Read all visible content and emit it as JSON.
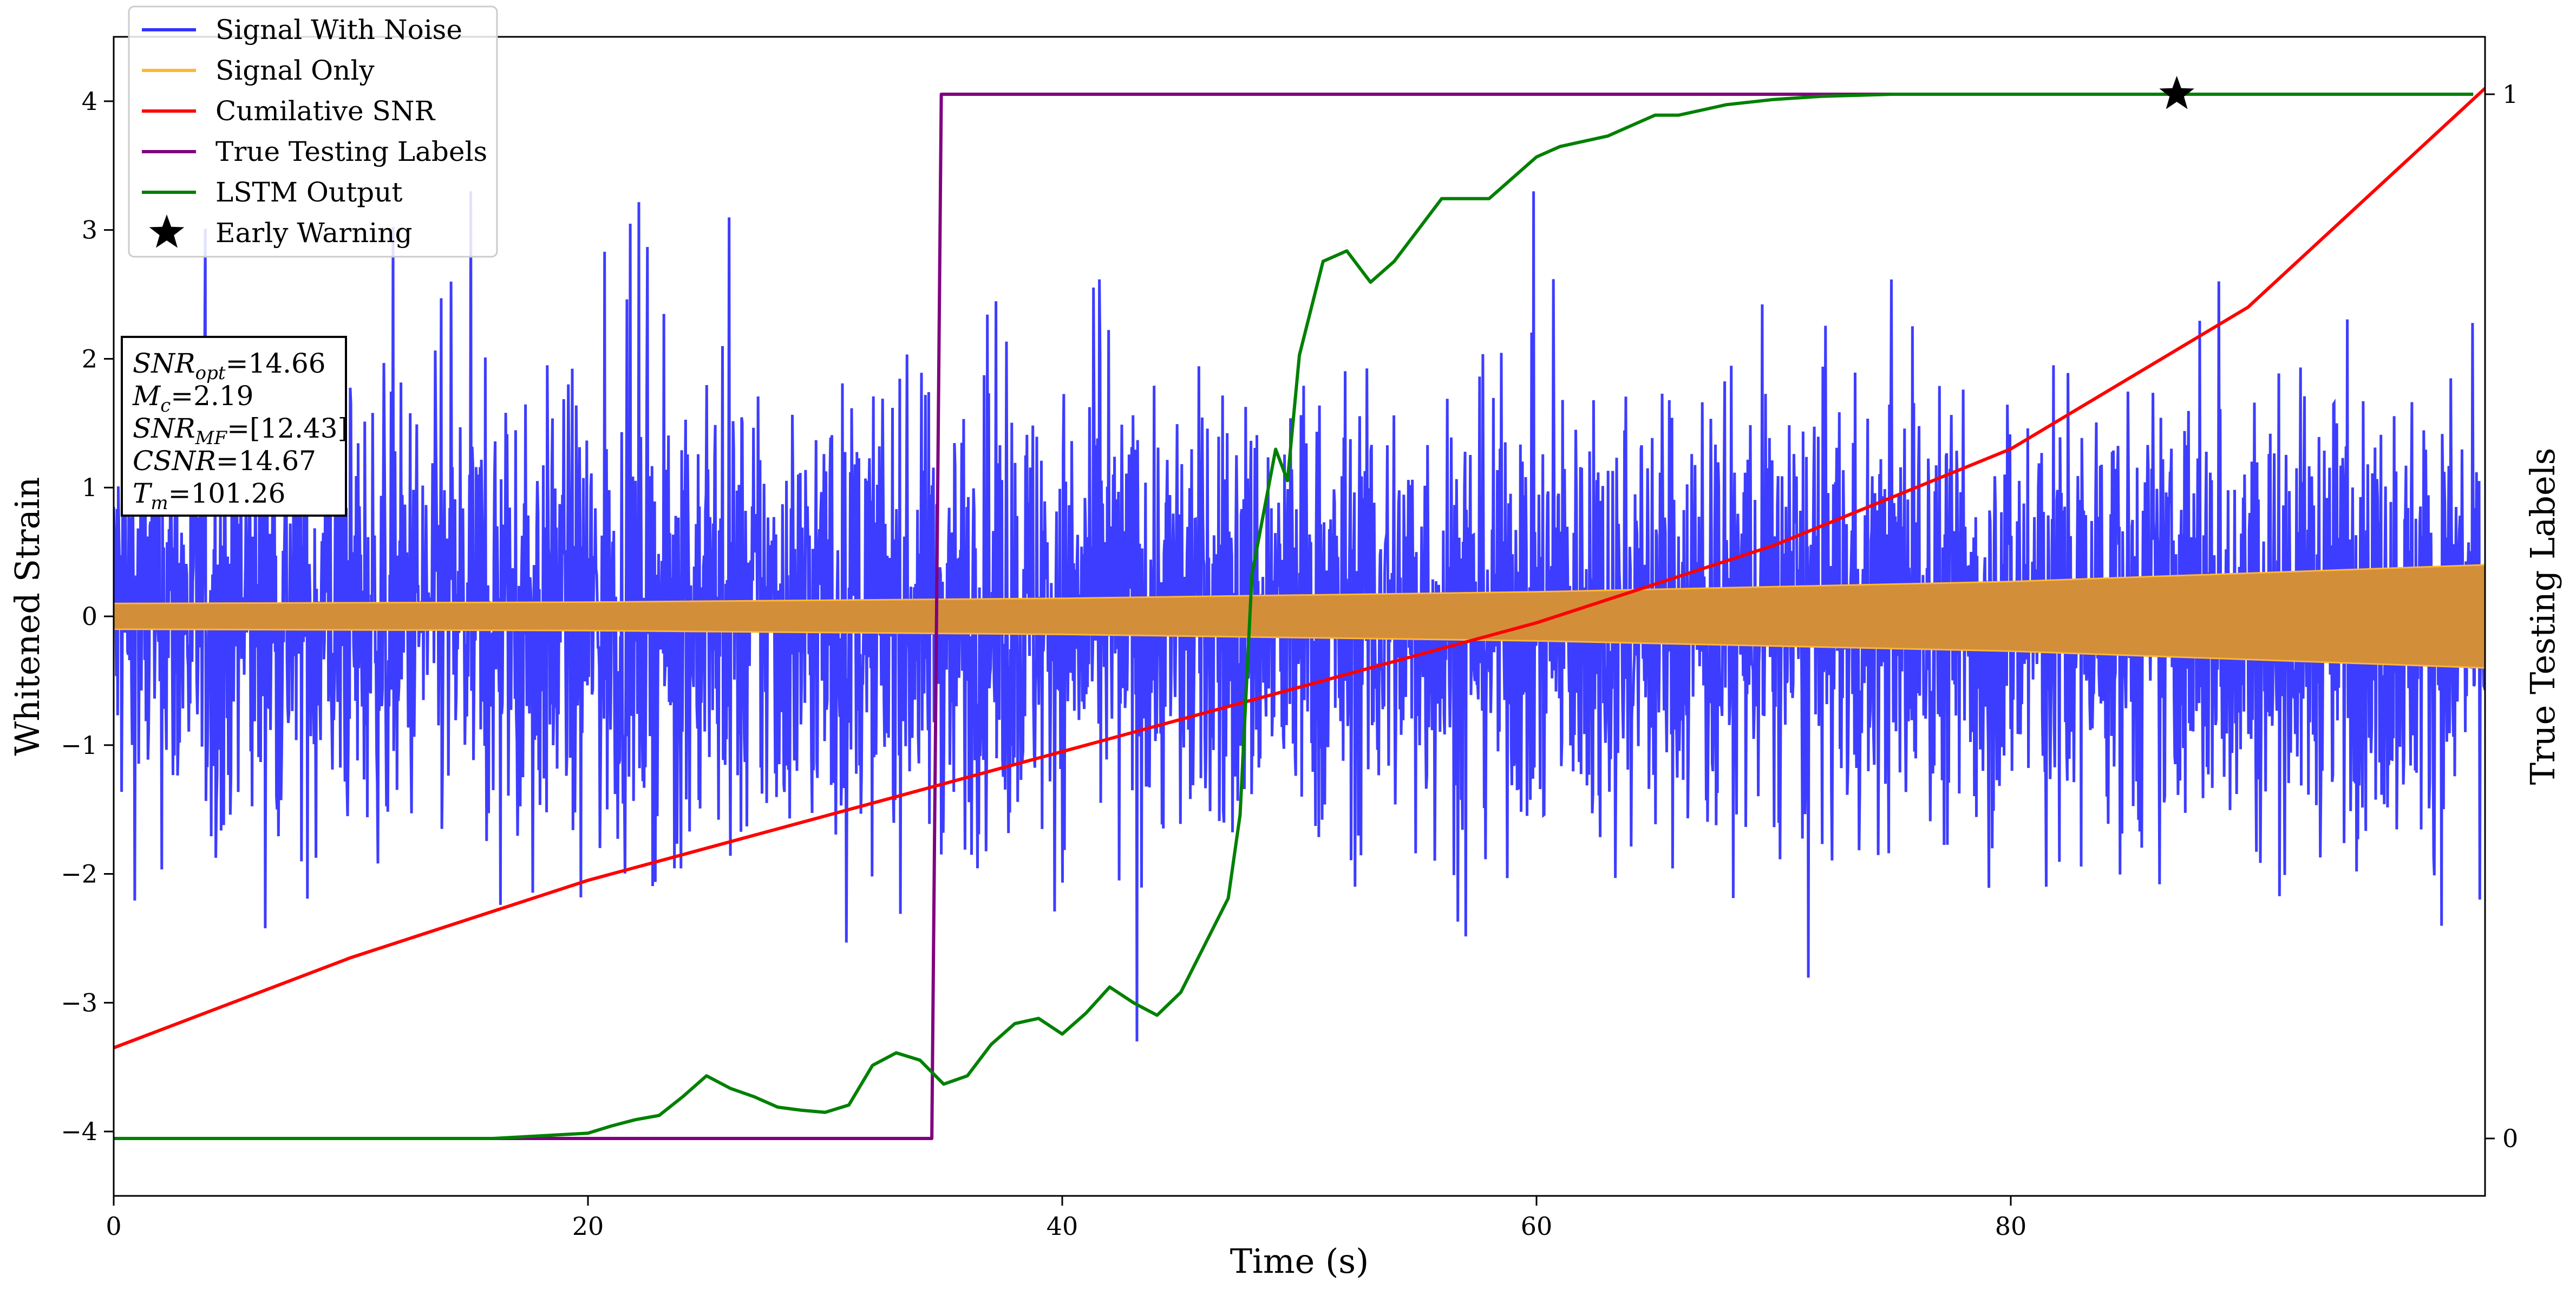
{
  "chart_data": {
    "type": "line",
    "title": "",
    "xlabel": "Time (s)",
    "ylabel": "Whitened Strain",
    "y2label": "True Testing Labels",
    "xlim": [
      0,
      100
    ],
    "ylim": [
      -4.5,
      4.5
    ],
    "y2lim": [
      -0.055,
      1.055
    ],
    "x_ticks": [
      0,
      20,
      40,
      60,
      80
    ],
    "y_ticks": [
      -4,
      -3,
      -2,
      -1,
      0,
      1,
      2,
      3,
      4
    ],
    "y2_ticks": [
      0,
      1
    ],
    "x_tick_labels": [
      "0",
      "20",
      "40",
      "60",
      "80"
    ],
    "y_tick_labels": [
      "−4",
      "−3",
      "−2",
      "−1",
      "0",
      "1",
      "2",
      "3",
      "4"
    ],
    "y2_tick_labels": [
      "0",
      "1"
    ],
    "grid": false,
    "legend_position": "top-left",
    "legend": [
      {
        "label": "Signal With Noise",
        "color": "#3333ff",
        "kind": "line"
      },
      {
        "label": "Signal Only",
        "color": "#ffb733",
        "kind": "line"
      },
      {
        "label": "Cumilative SNR",
        "color": "#ff0000",
        "kind": "line"
      },
      {
        "label": "True Testing Labels",
        "color": "#800080",
        "kind": "line"
      },
      {
        "label": "LSTM Output",
        "color": "#008000",
        "kind": "line"
      },
      {
        "label": "Early Warning",
        "color": "#000000",
        "kind": "star"
      }
    ],
    "info_box": [
      {
        "base": "SNR",
        "sub": "opt",
        "value": "=14.66"
      },
      {
        "base": "M",
        "sub": "c",
        "value": "=2.19"
      },
      {
        "base": "SNR",
        "sub": "MF",
        "value": "=[12.43]"
      },
      {
        "base": "CSNR",
        "sub": "",
        "value": "=14.67"
      },
      {
        "base": "T",
        "sub": "m",
        "value": "=101.26"
      }
    ],
    "series": [
      {
        "name": "Signal With Noise",
        "color": "#3333ff",
        "axis": "left",
        "noise_envelope": {
          "x_range": [
            0,
            100
          ],
          "typical_abs_max": 2.6,
          "peak_abs_max": 3.3
        }
      },
      {
        "name": "Signal Only",
        "color": "#ffb733",
        "axis": "left",
        "envelope": {
          "x": [
            0,
            20,
            40,
            60,
            80,
            100
          ],
          "amplitude": [
            0.1,
            0.11,
            0.14,
            0.19,
            0.27,
            0.4
          ]
        }
      },
      {
        "name": "Cumilative SNR",
        "color": "#ff0000",
        "axis": "left",
        "x": [
          0,
          10,
          20,
          30,
          40,
          50,
          60,
          70,
          80,
          90,
          100
        ],
        "y": [
          -3.35,
          -2.65,
          -2.05,
          -1.55,
          -1.05,
          -0.55,
          -0.05,
          0.55,
          1.3,
          2.4,
          4.1
        ]
      },
      {
        "name": "True Testing Labels",
        "color": "#800080",
        "axis": "right",
        "x": [
          0,
          34.5,
          34.9,
          99.5
        ],
        "y": [
          0,
          0,
          1,
          1
        ]
      },
      {
        "name": "LSTM Output",
        "color": "#008000",
        "axis": "right",
        "x": [
          0,
          16,
          20,
          21,
          22,
          23,
          24,
          25,
          26,
          27,
          28,
          29,
          30,
          31,
          32,
          33,
          34,
          35,
          36,
          37,
          38,
          39,
          40,
          41,
          42,
          43,
          44,
          45,
          46,
          47,
          47.5,
          48,
          48.5,
          49,
          49.5,
          50,
          51,
          52,
          53,
          54,
          55,
          56,
          57,
          58,
          59,
          60,
          61,
          62,
          63,
          64,
          65,
          66,
          67,
          68,
          70,
          72,
          75,
          80,
          99.5
        ],
        "y": [
          0,
          0,
          0.005,
          0.012,
          0.018,
          0.022,
          0.04,
          0.06,
          0.048,
          0.04,
          0.03,
          0.027,
          0.025,
          0.032,
          0.07,
          0.082,
          0.075,
          0.052,
          0.06,
          0.09,
          0.11,
          0.115,
          0.1,
          0.12,
          0.145,
          0.13,
          0.118,
          0.14,
          0.185,
          0.23,
          0.31,
          0.54,
          0.6,
          0.66,
          0.63,
          0.75,
          0.84,
          0.85,
          0.82,
          0.84,
          0.87,
          0.9,
          0.9,
          0.9,
          0.92,
          0.94,
          0.95,
          0.955,
          0.96,
          0.97,
          0.98,
          0.98,
          0.985,
          0.99,
          0.995,
          0.998,
          1.0,
          1.0,
          1.0
        ]
      },
      {
        "name": "Early Warning",
        "color": "#000000",
        "axis": "right",
        "kind": "marker",
        "x": [
          87
        ],
        "y": [
          1.0
        ]
      }
    ]
  }
}
